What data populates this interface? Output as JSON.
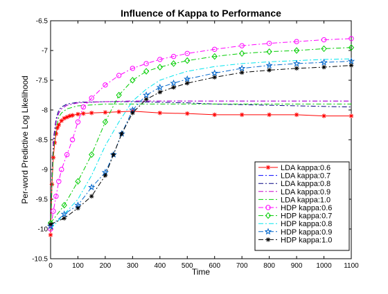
{
  "chart_data": {
    "type": "line",
    "title": "Influence of Kappa to Performance",
    "xlabel": "Time",
    "ylabel": "Per-word Predictive Log Likelihood",
    "xlim": [
      0,
      1100
    ],
    "ylim": [
      -10.5,
      -6.5
    ],
    "xticks": [
      0,
      100,
      200,
      300,
      400,
      500,
      600,
      700,
      800,
      900,
      1000,
      1100
    ],
    "xtick_labels": [
      "0",
      "100",
      "200",
      "300",
      "400",
      "500",
      "600",
      "700",
      "800",
      "900",
      "1000",
      "1100"
    ],
    "yticks": [
      -10.5,
      -10,
      -9.5,
      -9,
      -8.5,
      -8,
      -7.5,
      -7,
      -6.5
    ],
    "ytick_labels": [
      "-10.5",
      "-10",
      "-9.5",
      "-9",
      "-8.5",
      "-8",
      "-7.5",
      "-7",
      "-6.5"
    ],
    "grid": false,
    "legend_position": "bottom-right",
    "series": [
      {
        "name": "LDA kappa:0.6",
        "color": "#ff0000",
        "dash": "solid",
        "marker": "star",
        "x": [
          0,
          5,
          10,
          15,
          20,
          25,
          30,
          40,
          50,
          60,
          70,
          80,
          100,
          120,
          150,
          200,
          250,
          300,
          400,
          500,
          600,
          700,
          800,
          900,
          1000,
          1100
        ],
        "y": [
          -10.1,
          -9.25,
          -8.8,
          -8.55,
          -8.4,
          -8.3,
          -8.25,
          -8.18,
          -8.14,
          -8.12,
          -8.1,
          -8.09,
          -8.07,
          -8.06,
          -8.05,
          -8.04,
          -8.03,
          -8.02,
          -8.05,
          -8.06,
          -8.08,
          -8.08,
          -8.08,
          -8.08,
          -8.1,
          -8.1
        ]
      },
      {
        "name": "LDA kappa:0.7",
        "color": "#0000ff",
        "dash": "dashdot",
        "marker": "none",
        "x": [
          0,
          5,
          10,
          20,
          30,
          40,
          60,
          100,
          200,
          300,
          400,
          500,
          600,
          700,
          800,
          900,
          1000,
          1100
        ],
        "y": [
          -10.0,
          -9.2,
          -8.6,
          -8.2,
          -8.05,
          -7.98,
          -7.92,
          -7.88,
          -7.86,
          -7.85,
          -7.85,
          -7.85,
          -7.85,
          -7.85,
          -7.85,
          -7.85,
          -7.85,
          -7.85
        ]
      },
      {
        "name": "LDA kappa:0.8",
        "color": "#000080",
        "dash": "dashdot",
        "marker": "none",
        "x": [
          0,
          5,
          10,
          20,
          30,
          40,
          60,
          100,
          200,
          300,
          400,
          500,
          600,
          700,
          800,
          900,
          1000,
          1100
        ],
        "y": [
          -10.0,
          -9.1,
          -8.5,
          -8.15,
          -8.0,
          -7.95,
          -7.9,
          -7.87,
          -7.86,
          -7.86,
          -7.87,
          -7.88,
          -7.9,
          -7.91,
          -7.92,
          -7.93,
          -7.94,
          -7.95
        ]
      },
      {
        "name": "LDA kappa:0.9",
        "color": "#cc00cc",
        "dash": "dashdot",
        "marker": "none",
        "x": [
          0,
          5,
          10,
          20,
          30,
          40,
          60,
          100,
          200,
          300,
          400,
          500,
          600,
          700,
          800,
          900,
          1000,
          1100
        ],
        "y": [
          -10.0,
          -9.2,
          -8.55,
          -8.2,
          -8.05,
          -7.98,
          -7.92,
          -7.88,
          -7.86,
          -7.85,
          -7.85,
          -7.85,
          -7.85,
          -7.85,
          -7.85,
          -7.85,
          -7.85,
          -7.85
        ]
      },
      {
        "name": "LDA kappa:1.0",
        "color": "#00cc00",
        "dash": "dashdot",
        "marker": "none",
        "x": [
          0,
          5,
          10,
          20,
          30,
          40,
          60,
          100,
          200,
          300,
          400,
          500,
          600,
          700,
          800,
          900,
          1000,
          1100
        ],
        "y": [
          -10.0,
          -9.3,
          -8.7,
          -8.3,
          -8.12,
          -8.05,
          -7.98,
          -7.93,
          -7.9,
          -7.9,
          -7.9,
          -7.9,
          -7.9,
          -7.9,
          -7.9,
          -7.9,
          -7.9,
          -7.9
        ]
      },
      {
        "name": "HDP kappa:0.6",
        "color": "#ff00ff",
        "dash": "dashdot",
        "marker": "circle",
        "x": [
          0,
          10,
          20,
          30,
          40,
          60,
          80,
          100,
          120,
          150,
          200,
          250,
          300,
          350,
          400,
          450,
          500,
          600,
          700,
          800,
          900,
          1000,
          1100
        ],
        "y": [
          -10.0,
          -9.7,
          -9.45,
          -9.2,
          -9.0,
          -8.75,
          -8.5,
          -8.2,
          -7.95,
          -7.8,
          -7.58,
          -7.42,
          -7.3,
          -7.22,
          -7.15,
          -7.1,
          -7.05,
          -6.98,
          -6.92,
          -6.88,
          -6.85,
          -6.82,
          -6.8
        ]
      },
      {
        "name": "HDP kappa:0.7",
        "color": "#00cc00",
        "dash": "dashdot",
        "marker": "diamond",
        "x": [
          0,
          50,
          100,
          150,
          200,
          250,
          300,
          350,
          400,
          450,
          500,
          600,
          700,
          800,
          900,
          1000,
          1100
        ],
        "y": [
          -9.9,
          -9.6,
          -9.2,
          -8.75,
          -8.2,
          -7.75,
          -7.5,
          -7.35,
          -7.28,
          -7.22,
          -7.17,
          -7.1,
          -7.05,
          -7.02,
          -7.0,
          -6.97,
          -6.95
        ]
      },
      {
        "name": "HDP kappa:0.8",
        "color": "#00e5ee",
        "dash": "dashdot",
        "marker": "none",
        "x": [
          0,
          50,
          100,
          150,
          200,
          250,
          300,
          350,
          400,
          450,
          500,
          600,
          700,
          800,
          900,
          1000,
          1100
        ],
        "y": [
          -10.0,
          -9.75,
          -9.5,
          -9.1,
          -8.6,
          -8.2,
          -7.85,
          -7.65,
          -7.5,
          -7.42,
          -7.35,
          -7.27,
          -7.22,
          -7.19,
          -7.17,
          -7.15,
          -7.14
        ]
      },
      {
        "name": "HDP kappa:0.9",
        "color": "#0066cc",
        "dash": "dashdot",
        "marker": "pentagram",
        "x": [
          0,
          50,
          100,
          150,
          200,
          230,
          260,
          300,
          350,
          400,
          450,
          500,
          600,
          700,
          800,
          900,
          1000,
          1100
        ],
        "y": [
          -9.95,
          -9.75,
          -9.6,
          -9.3,
          -9.05,
          -8.75,
          -8.4,
          -8.0,
          -7.75,
          -7.62,
          -7.55,
          -7.48,
          -7.38,
          -7.3,
          -7.25,
          -7.22,
          -7.2,
          -7.18
        ]
      },
      {
        "name": "HDP kappa:1.0",
        "color": "#000000",
        "dash": "dashdot",
        "marker": "star",
        "x": [
          0,
          50,
          100,
          150,
          200,
          230,
          260,
          300,
          350,
          400,
          450,
          500,
          600,
          700,
          800,
          900,
          1000,
          1100
        ],
        "y": [
          -9.92,
          -9.82,
          -9.65,
          -9.45,
          -9.1,
          -8.75,
          -8.4,
          -8.05,
          -7.82,
          -7.7,
          -7.62,
          -7.55,
          -7.45,
          -7.37,
          -7.33,
          -7.3,
          -7.28,
          -7.25
        ]
      }
    ]
  }
}
